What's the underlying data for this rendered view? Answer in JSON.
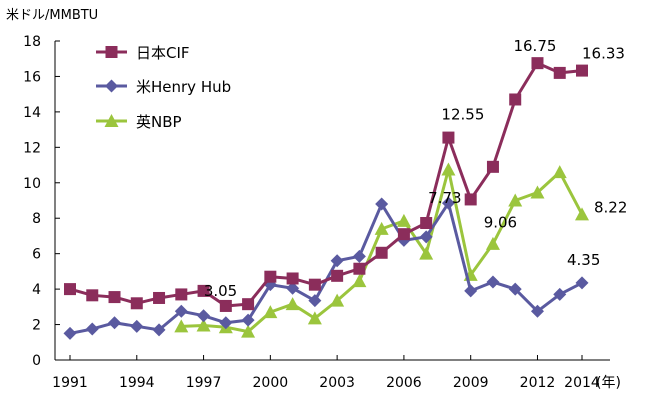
{
  "chart_data": {
    "type": "line",
    "unit_label": "米ドル/MMBTU",
    "x_unit_label": "(年)",
    "ylim": [
      0,
      18
    ],
    "y_ticks": [
      0,
      2,
      4,
      6,
      8,
      10,
      12,
      14,
      16,
      18
    ],
    "xlim": [
      1991,
      2014
    ],
    "x_ticks": [
      1991,
      1994,
      1997,
      2000,
      2003,
      2006,
      2009,
      2012,
      2014
    ],
    "grid": false,
    "legend_position": "top-left",
    "series": [
      {
        "name": "日本CIF",
        "color": "#8B2D5B",
        "marker": "square",
        "points": [
          [
            1991,
            4.0
          ],
          [
            1992,
            3.65
          ],
          [
            1993,
            3.55
          ],
          [
            1994,
            3.2
          ],
          [
            1995,
            3.5
          ],
          [
            1996,
            3.7
          ],
          [
            1997,
            3.9
          ],
          [
            1998,
            3.05
          ],
          [
            1999,
            3.15
          ],
          [
            2000,
            4.7
          ],
          [
            2001,
            4.6
          ],
          [
            2002,
            4.25
          ],
          [
            2003,
            4.75
          ],
          [
            2004,
            5.15
          ],
          [
            2005,
            6.05
          ],
          [
            2006,
            7.1
          ],
          [
            2007,
            7.73
          ],
          [
            2008,
            12.55
          ],
          [
            2009,
            9.06
          ],
          [
            2010,
            10.9
          ],
          [
            2011,
            14.7
          ],
          [
            2012,
            16.75
          ],
          [
            2013,
            16.2
          ],
          [
            2014,
            16.33
          ]
        ]
      },
      {
        "name": "米Henry Hub",
        "color": "#5A5AA0",
        "marker": "diamond",
        "points": [
          [
            1991,
            1.5
          ],
          [
            1992,
            1.75
          ],
          [
            1993,
            2.1
          ],
          [
            1994,
            1.9
          ],
          [
            1995,
            1.7
          ],
          [
            1996,
            2.75
          ],
          [
            1997,
            2.5
          ],
          [
            1998,
            2.1
          ],
          [
            1999,
            2.25
          ],
          [
            2000,
            4.25
          ],
          [
            2001,
            4.05
          ],
          [
            2002,
            3.35
          ],
          [
            2003,
            5.6
          ],
          [
            2004,
            5.85
          ],
          [
            2005,
            8.8
          ],
          [
            2006,
            6.75
          ],
          [
            2007,
            6.95
          ],
          [
            2008,
            8.85
          ],
          [
            2009,
            3.9
          ],
          [
            2010,
            4.4
          ],
          [
            2011,
            4.0
          ],
          [
            2012,
            2.75
          ],
          [
            2013,
            3.7
          ],
          [
            2014,
            4.35
          ]
        ]
      },
      {
        "name": "英NBP",
        "color": "#9BC53D",
        "marker": "triangle",
        "points": [
          [
            1996,
            1.9
          ],
          [
            1997,
            1.95
          ],
          [
            1998,
            1.85
          ],
          [
            1999,
            1.6
          ],
          [
            2000,
            2.7
          ],
          [
            2001,
            3.15
          ],
          [
            2002,
            2.35
          ],
          [
            2003,
            3.35
          ],
          [
            2004,
            4.45
          ],
          [
            2005,
            7.4
          ],
          [
            2006,
            7.85
          ],
          [
            2007,
            6.0
          ],
          [
            2008,
            10.75
          ],
          [
            2009,
            4.8
          ],
          [
            2010,
            6.55
          ],
          [
            2011,
            9.0
          ],
          [
            2012,
            9.45
          ],
          [
            2013,
            10.6
          ],
          [
            2014,
            8.22
          ]
        ]
      }
    ],
    "annotations": [
      {
        "text": "3.05",
        "year": 1998,
        "value": 3.05,
        "series": "日本CIF"
      },
      {
        "text": "7.73",
        "year": 2007,
        "value": 7.73,
        "series": "日本CIF"
      },
      {
        "text": "12.55",
        "year": 2008,
        "value": 12.55,
        "series": "日本CIF"
      },
      {
        "text": "9.06",
        "year": 2009,
        "value": 9.06,
        "series": "日本CIF"
      },
      {
        "text": "16.75",
        "year": 2012,
        "value": 16.75,
        "series": "日本CIF"
      },
      {
        "text": "16.33",
        "year": 2014,
        "value": 16.33,
        "series": "日本CIF"
      },
      {
        "text": "8.22",
        "year": 2014,
        "value": 8.22,
        "series": "英NBP"
      },
      {
        "text": "4.35",
        "year": 2014,
        "value": 4.35,
        "series": "米Henry Hub"
      }
    ]
  }
}
